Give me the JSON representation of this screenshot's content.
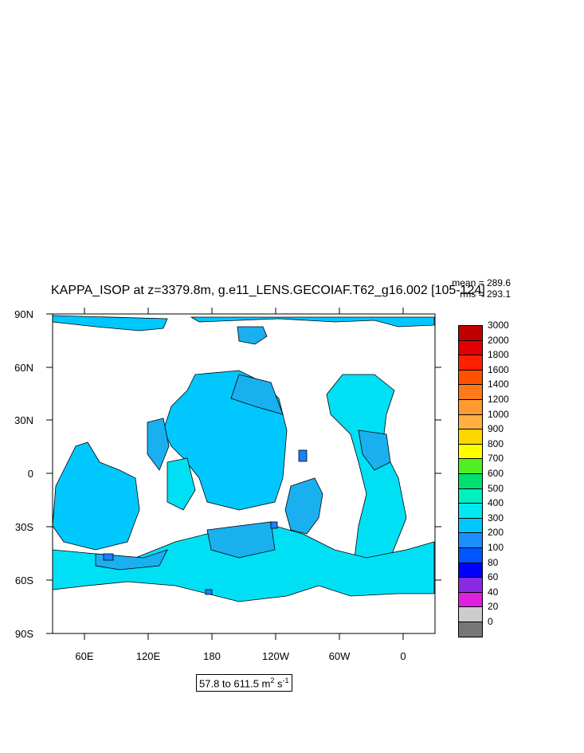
{
  "title": "KAPPA_ISOP at z=3379.8m, g.e11_LENS.GECOIAF.T62_g16.002 [105-124]",
  "mean": "mean = 289.6",
  "rms": "rms = 293.1",
  "range_text": "57.8 to 611.5 m",
  "range_unit_sup": "2",
  "range_unit_tail": " s",
  "range_unit_sup2": "-1",
  "y_labels": [
    "90N",
    "60N",
    "30N",
    "0",
    "30S",
    "60S",
    "90S"
  ],
  "x_labels": [
    "60E",
    "120E",
    "180",
    "120W",
    "60W",
    "0"
  ],
  "colorbar": {
    "labels": [
      "3000",
      "2000",
      "1800",
      "1600",
      "1400",
      "1200",
      "1000",
      "900",
      "800",
      "700",
      "600",
      "500",
      "400",
      "300",
      "200",
      "100",
      "80",
      "60",
      "40",
      "20",
      "0"
    ],
    "colors": [
      "#c00000",
      "#e00000",
      "#ff2000",
      "#ff5000",
      "#ff7a1a",
      "#ff9a30",
      "#ffb040",
      "#ffd700",
      "#ffff00",
      "#50f020",
      "#00e070",
      "#00f0c0",
      "#00e8f0",
      "#00c8ff",
      "#1a90ff",
      "#0055ff",
      "#0000ff",
      "#8a2be2",
      "#e020e0",
      "#cccccc",
      "#777777"
    ]
  },
  "colors": {
    "ocean_main": "#00c8ff",
    "ocean_light": "#00e0f5",
    "ocean_mid": "#1ab0f0",
    "ocean_dark": "#1a80ff",
    "coast": "#000000"
  }
}
